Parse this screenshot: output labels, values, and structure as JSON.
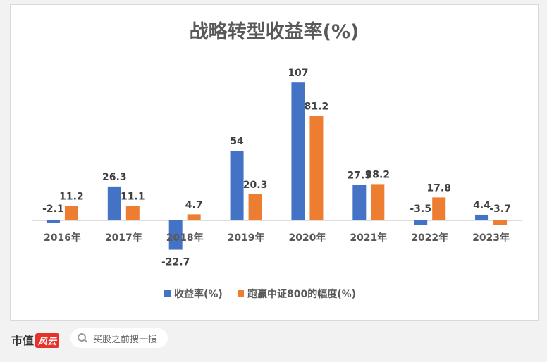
{
  "chart_data": {
    "type": "bar",
    "title": "战略转型收益率(%)",
    "categories": [
      "2016年",
      "2017年",
      "2018年",
      "2019年",
      "2020年",
      "2021年",
      "2022年",
      "2023年"
    ],
    "series": [
      {
        "name": "收益率(%)",
        "color": "#4472c4",
        "values": [
          -2.1,
          26.3,
          -22.7,
          54,
          107,
          27.5,
          -3.5,
          4.4
        ]
      },
      {
        "name": "跑赢中证800的幅度(%)",
        "color": "#ed7d31",
        "values": [
          11.2,
          11.1,
          4.7,
          20.3,
          81.2,
          28.2,
          17.8,
          -3.7
        ]
      }
    ],
    "xlabel": "",
    "ylabel": "",
    "grid": false,
    "legend_position": "bottom"
  },
  "footer": {
    "brand_main": "市值",
    "brand_badge": "风云",
    "search_icon": "search-icon",
    "search_placeholder": "买股之前搜一搜"
  }
}
